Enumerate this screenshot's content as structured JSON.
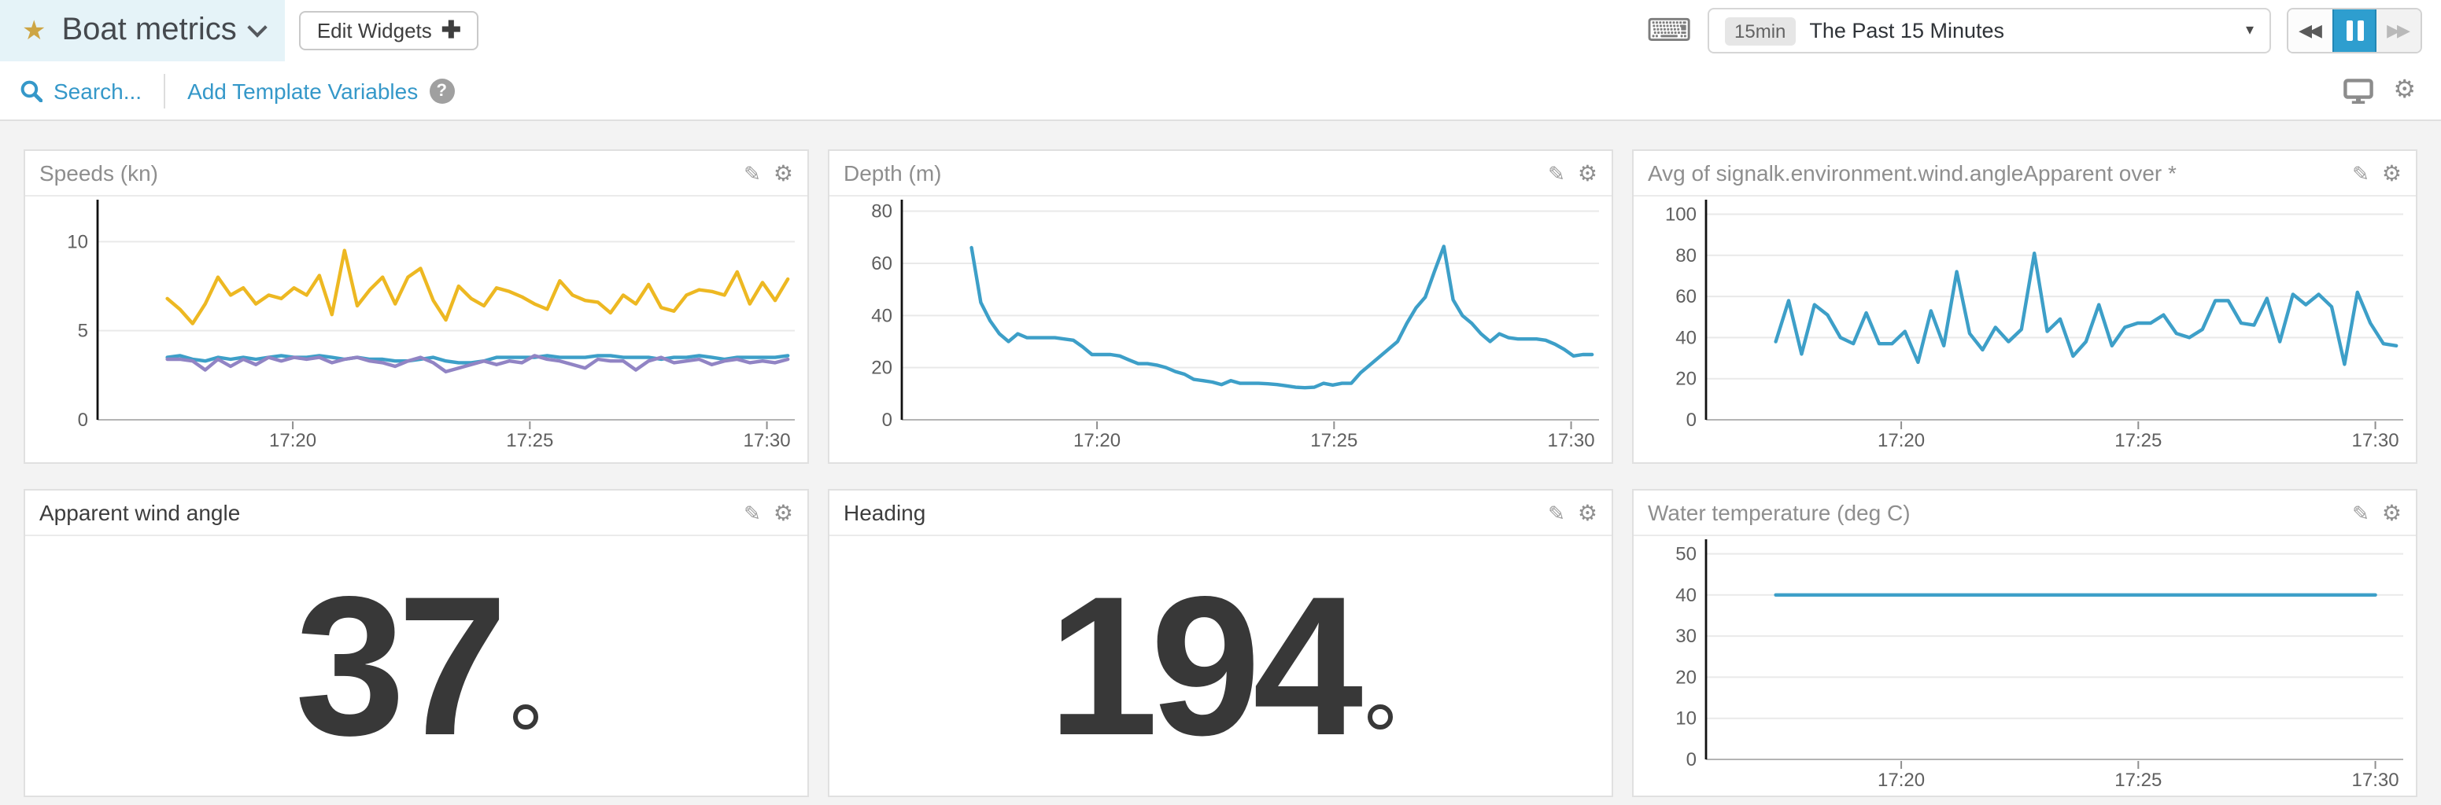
{
  "header": {
    "title": "Boat metrics",
    "edit_widgets_label": "Edit Widgets",
    "time_range": {
      "shortcut_badge": "15min",
      "selected": "The Past 15 Minutes"
    }
  },
  "toolbar": {
    "search_label": "Search...",
    "add_template_variables_label": "Add Template Variables"
  },
  "icons": {
    "star": "★",
    "keyboard": "⌨",
    "caret_down": "▾",
    "rewind": "◀◀",
    "forward": "▶▶",
    "help": "?",
    "gear": "⚙",
    "pencil": "✎",
    "plus": "✚"
  },
  "colors": {
    "accent_link": "#3598c9",
    "pause_active": "#2e9ecf",
    "series_yellow": "#edb822",
    "series_blue": "#3d9fc8",
    "series_purple": "#9184c4",
    "stat_text": "#383838",
    "title_highlight": "#e5f3f8"
  },
  "panels": [
    {
      "kind": "chart",
      "title": "Speeds (kn)",
      "chart": 0
    },
    {
      "kind": "chart",
      "title": "Depth (m)",
      "chart": 1
    },
    {
      "kind": "chart",
      "title": "Avg of signalk.environment.wind.angleApparent over *",
      "chart": 2
    },
    {
      "kind": "stat",
      "title": "Apparent wind angle",
      "value": "37",
      "unit_symbol": "°"
    },
    {
      "kind": "stat",
      "title": "Heading",
      "value": "194",
      "unit_symbol": "°"
    },
    {
      "kind": "chart",
      "title": "Water temperature (deg C)",
      "chart": 3
    }
  ],
  "chart_data": [
    {
      "type": "line",
      "title": "Speeds (kn)",
      "xlabel": "",
      "ylabel": "",
      "y_ticks": [
        0,
        5,
        10
      ],
      "ymax": 12,
      "x_ticks": [
        {
          "label": "17:20",
          "pos": 0.28
        },
        {
          "label": "17:25",
          "pos": 0.62
        },
        {
          "label": "17:30",
          "pos": 0.96
        }
      ],
      "x_start": 0.1,
      "x_end": 0.99,
      "series": [
        {
          "name": "series-yellow",
          "color": "#edb822",
          "values": [
            6.8,
            6.2,
            5.4,
            6.5,
            8.0,
            7.0,
            7.4,
            6.5,
            7.0,
            6.8,
            7.4,
            7.0,
            8.1,
            5.9,
            9.5,
            6.4,
            7.3,
            8.0,
            6.5,
            8.0,
            8.5,
            6.7,
            5.6,
            7.5,
            6.8,
            6.4,
            7.4,
            7.2,
            6.9,
            6.5,
            6.2,
            7.8,
            7.0,
            6.7,
            6.6,
            6.0,
            7.0,
            6.5,
            7.6,
            6.3,
            6.1,
            7.0,
            7.3,
            7.2,
            7.0,
            8.3,
            6.5,
            7.7,
            6.7,
            7.9
          ]
        },
        {
          "name": "series-blue",
          "color": "#3d9fc8",
          "values": [
            3.5,
            3.6,
            3.4,
            3.3,
            3.5,
            3.4,
            3.5,
            3.4,
            3.5,
            3.6,
            3.5,
            3.5,
            3.6,
            3.5,
            3.4,
            3.5,
            3.4,
            3.4,
            3.3,
            3.3,
            3.4,
            3.5,
            3.3,
            3.2,
            3.2,
            3.3,
            3.5,
            3.5,
            3.5,
            3.5,
            3.6,
            3.5,
            3.5,
            3.5,
            3.6,
            3.6,
            3.5,
            3.5,
            3.5,
            3.4,
            3.5,
            3.5,
            3.6,
            3.5,
            3.4,
            3.5,
            3.5,
            3.5,
            3.5,
            3.6
          ]
        },
        {
          "name": "series-purple",
          "color": "#9184c4",
          "values": [
            3.4,
            3.4,
            3.3,
            2.8,
            3.4,
            3.0,
            3.4,
            3.1,
            3.5,
            3.3,
            3.5,
            3.4,
            3.5,
            3.2,
            3.4,
            3.5,
            3.3,
            3.2,
            3.0,
            3.3,
            3.5,
            3.2,
            2.7,
            2.9,
            3.1,
            3.3,
            3.1,
            3.3,
            3.2,
            3.6,
            3.4,
            3.3,
            3.1,
            2.9,
            3.4,
            3.3,
            3.3,
            2.8,
            3.3,
            3.5,
            3.2,
            3.3,
            3.4,
            3.1,
            3.3,
            3.4,
            3.2,
            3.3,
            3.2,
            3.4
          ]
        }
      ]
    },
    {
      "type": "line",
      "title": "Depth (m)",
      "xlabel": "",
      "ylabel": "",
      "y_ticks": [
        0,
        20,
        40,
        60,
        80
      ],
      "ymax": 82,
      "x_ticks": [
        {
          "label": "17:20",
          "pos": 0.28
        },
        {
          "label": "17:25",
          "pos": 0.62
        },
        {
          "label": "17:30",
          "pos": 0.96
        }
      ],
      "x_start": 0.1,
      "x_end": 0.99,
      "series": [
        {
          "name": "series-blue",
          "color": "#3d9fc8",
          "values": [
            66,
            45,
            38,
            33,
            30,
            33,
            31.5,
            31.5,
            31.5,
            31.5,
            31,
            30.5,
            28,
            25,
            25,
            25,
            24.5,
            23,
            21.5,
            21.5,
            21,
            20,
            18.5,
            17.5,
            15.5,
            15,
            14.5,
            13.5,
            15,
            14,
            14,
            14,
            13.8,
            13.5,
            13,
            12.5,
            12.3,
            12.5,
            14,
            13.3,
            14,
            14,
            18,
            21,
            24,
            27,
            30,
            37,
            43,
            47,
            57,
            66.5,
            46,
            40,
            37,
            33,
            30,
            33,
            31.5,
            31,
            31,
            31,
            30.5,
            29,
            27,
            24.5,
            25,
            25
          ]
        }
      ]
    },
    {
      "type": "line",
      "title": "Avg of signalk.environment.wind.angleApparent over *",
      "xlabel": "",
      "ylabel": "",
      "y_ticks": [
        0,
        20,
        40,
        60,
        80,
        100
      ],
      "ymax": 104,
      "x_ticks": [
        {
          "label": "17:20",
          "pos": 0.28
        },
        {
          "label": "17:25",
          "pos": 0.62
        },
        {
          "label": "17:30",
          "pos": 0.96
        }
      ],
      "x_start": 0.1,
      "x_end": 0.99,
      "series": [
        {
          "name": "series-blue",
          "color": "#3d9fc8",
          "values": [
            38,
            58,
            32,
            56,
            51,
            40,
            37,
            52,
            37,
            37,
            43,
            28,
            53,
            36,
            72,
            42,
            34,
            45,
            38,
            44,
            81,
            43,
            49,
            31,
            38,
            56,
            36,
            45,
            47,
            47,
            51,
            42,
            40,
            44,
            58,
            58,
            47,
            46,
            59,
            38,
            61,
            56,
            61,
            55,
            27,
            62,
            47,
            37,
            36
          ]
        }
      ]
    },
    {
      "type": "line",
      "title": "Water temperature (deg C)",
      "xlabel": "",
      "ylabel": "",
      "y_ticks": [
        0,
        10,
        20,
        30,
        40,
        50
      ],
      "ymax": 52,
      "x_ticks": [
        {
          "label": "17:20",
          "pos": 0.28
        },
        {
          "label": "17:25",
          "pos": 0.62
        },
        {
          "label": "17:30",
          "pos": 0.96
        }
      ],
      "x_start": 0.1,
      "x_end": 0.96,
      "series": [
        {
          "name": "series-blue",
          "color": "#3d9fc8",
          "values": [
            40,
            40
          ]
        }
      ]
    }
  ]
}
